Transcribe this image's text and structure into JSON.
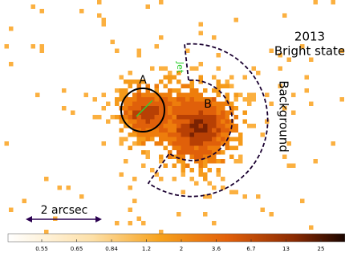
{
  "labels": {
    "year": "2013",
    "state": "Bright state",
    "source_a": "A",
    "source_b": "B",
    "jet": "Jet",
    "background": "Background",
    "scale": "2 arcsec"
  },
  "colorbar": {
    "ticks": [
      0.55,
      0.65,
      0.84,
      1.2,
      2,
      3.6,
      6.7,
      13,
      25
    ]
  }
}
